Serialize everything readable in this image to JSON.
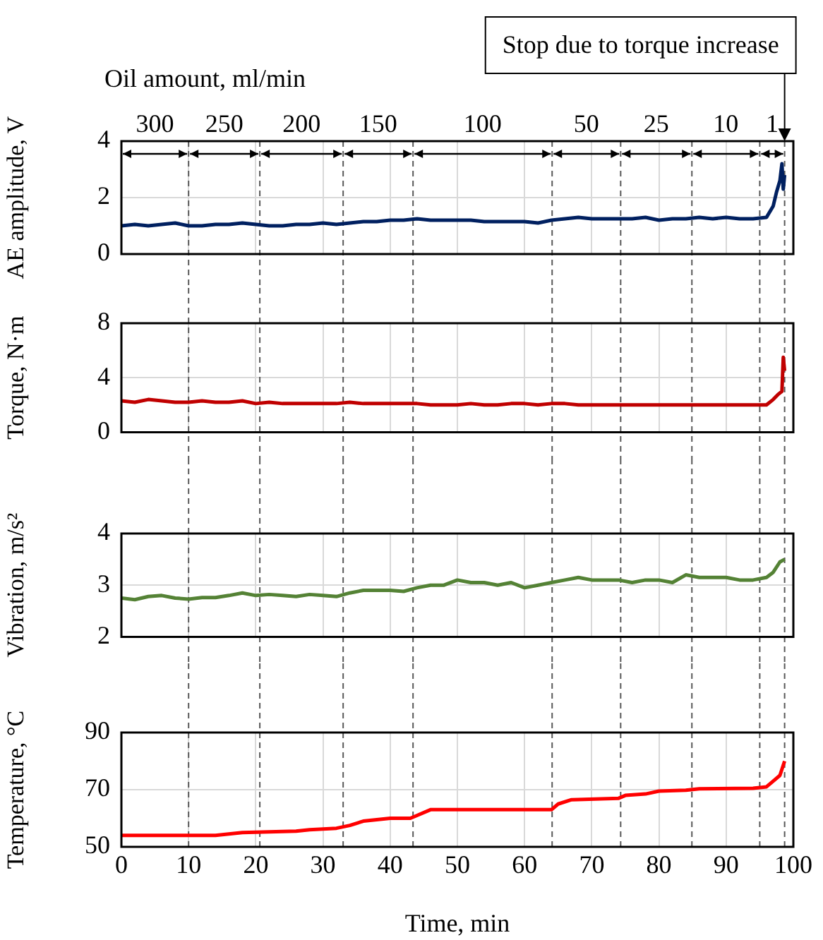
{
  "chart_data": [
    {
      "type": "line",
      "title": "Oil amount, ml/min",
      "ylabel": "AE amplitude, V",
      "xlim": [
        0,
        100
      ],
      "xticks": [
        0,
        10,
        20,
        30,
        40,
        50,
        60,
        70,
        80,
        90,
        100
      ],
      "ylim": [
        0,
        4
      ],
      "yticks": [
        0,
        2,
        4
      ],
      "grid": true,
      "tick_labels": "y",
      "marker": "none",
      "series": [
        {
          "color": "#002060",
          "x": [
            0,
            2,
            4,
            6,
            8,
            10,
            12,
            14,
            16,
            18,
            20,
            22,
            24,
            26,
            28,
            30,
            32,
            34,
            36,
            38,
            40,
            42,
            44,
            46,
            48,
            50,
            52,
            54,
            56,
            58,
            60,
            62,
            64,
            66,
            68,
            70,
            72,
            74,
            76,
            78,
            80,
            82,
            84,
            86,
            88,
            90,
            92,
            94,
            96,
            97,
            97.5,
            98,
            98.3,
            98.5,
            98.7
          ],
          "values": [
            1.0,
            1.05,
            1.0,
            1.05,
            1.1,
            1.0,
            1.0,
            1.05,
            1.05,
            1.1,
            1.05,
            1.0,
            1.0,
            1.05,
            1.05,
            1.1,
            1.05,
            1.1,
            1.15,
            1.15,
            1.2,
            1.2,
            1.25,
            1.2,
            1.2,
            1.2,
            1.2,
            1.15,
            1.15,
            1.15,
            1.15,
            1.1,
            1.2,
            1.25,
            1.3,
            1.25,
            1.25,
            1.25,
            1.25,
            1.3,
            1.2,
            1.25,
            1.25,
            1.3,
            1.25,
            1.3,
            1.25,
            1.25,
            1.3,
            1.7,
            2.2,
            2.6,
            3.2,
            2.3,
            2.8
          ]
        }
      ],
      "ref_lines": [
        {
          "axis": "x",
          "value": 10,
          "label": null,
          "line_style": "dashed"
        },
        {
          "axis": "x",
          "value": 20.6,
          "label": null,
          "line_style": "dashed"
        },
        {
          "axis": "x",
          "value": 33,
          "label": null,
          "line_style": "dashed"
        },
        {
          "axis": "x",
          "value": 43.4,
          "label": null,
          "line_style": "dashed"
        },
        {
          "axis": "x",
          "value": 64.1,
          "label": null,
          "line_style": "dashed"
        },
        {
          "axis": "x",
          "value": 74.3,
          "label": null,
          "line_style": "dashed"
        },
        {
          "axis": "x",
          "value": 84.9,
          "label": null,
          "line_style": "dashed"
        },
        {
          "axis": "x",
          "value": 95,
          "label": null,
          "line_style": "dashed"
        },
        {
          "axis": "x",
          "value": 98.7,
          "label": "Stop due to torque increase",
          "line_style": "dashed"
        }
      ],
      "annotations": [
        "300",
        "250",
        "200",
        "150",
        "100",
        "50",
        "25",
        "10",
        "1"
      ]
    },
    {
      "type": "line",
      "ylabel": "Torque, N·m",
      "xlim": [
        0,
        100
      ],
      "xticks": [
        0,
        10,
        20,
        30,
        40,
        50,
        60,
        70,
        80,
        90,
        100
      ],
      "ylim": [
        0,
        8
      ],
      "yticks": [
        0,
        4,
        8
      ],
      "grid": true,
      "tick_labels": "y",
      "marker": "none",
      "series": [
        {
          "color": "#c00000",
          "x": [
            0,
            2,
            4,
            6,
            8,
            10,
            12,
            14,
            16,
            18,
            20,
            22,
            24,
            26,
            28,
            30,
            32,
            34,
            36,
            38,
            40,
            42,
            44,
            46,
            48,
            50,
            52,
            54,
            56,
            58,
            60,
            62,
            64,
            66,
            68,
            70,
            72,
            74,
            76,
            78,
            80,
            82,
            84,
            86,
            88,
            90,
            92,
            94,
            96,
            97,
            97.8,
            98.3,
            98.5,
            98.7
          ],
          "values": [
            2.3,
            2.2,
            2.4,
            2.3,
            2.2,
            2.2,
            2.3,
            2.2,
            2.2,
            2.3,
            2.1,
            2.2,
            2.1,
            2.1,
            2.1,
            2.1,
            2.1,
            2.2,
            2.1,
            2.1,
            2.1,
            2.1,
            2.1,
            2.0,
            2.0,
            2.0,
            2.1,
            2.0,
            2.0,
            2.1,
            2.1,
            2.0,
            2.1,
            2.1,
            2.0,
            2.0,
            2.0,
            2.0,
            2.0,
            2.0,
            2.0,
            2.0,
            2.0,
            2.0,
            2.0,
            2.0,
            2.0,
            2.0,
            2.0,
            2.4,
            2.8,
            3.0,
            5.5,
            4.5
          ]
        }
      ],
      "ref_lines": [
        {
          "axis": "x",
          "value": 10,
          "label": null,
          "line_style": "dashed"
        },
        {
          "axis": "x",
          "value": 20.6,
          "label": null,
          "line_style": "dashed"
        },
        {
          "axis": "x",
          "value": 33,
          "label": null,
          "line_style": "dashed"
        },
        {
          "axis": "x",
          "value": 43.4,
          "label": null,
          "line_style": "dashed"
        },
        {
          "axis": "x",
          "value": 64.1,
          "label": null,
          "line_style": "dashed"
        },
        {
          "axis": "x",
          "value": 74.3,
          "label": null,
          "line_style": "dashed"
        },
        {
          "axis": "x",
          "value": 84.9,
          "label": null,
          "line_style": "dashed"
        },
        {
          "axis": "x",
          "value": 95,
          "label": null,
          "line_style": "dashed"
        },
        {
          "axis": "x",
          "value": 98.7,
          "label": null,
          "line_style": "dashed"
        }
      ]
    },
    {
      "type": "line",
      "ylabel": "Vibration, m/s²",
      "xlim": [
        0,
        100
      ],
      "xticks": [
        0,
        10,
        20,
        30,
        40,
        50,
        60,
        70,
        80,
        90,
        100
      ],
      "ylim": [
        2,
        4
      ],
      "yticks": [
        2,
        3,
        4
      ],
      "grid": true,
      "tick_labels": "y",
      "marker": "none",
      "series": [
        {
          "color": "#548235",
          "x": [
            0,
            2,
            4,
            6,
            8,
            10,
            12,
            14,
            16,
            18,
            20,
            22,
            24,
            26,
            28,
            30,
            32,
            34,
            36,
            38,
            40,
            42,
            44,
            46,
            48,
            50,
            52,
            54,
            56,
            58,
            60,
            62,
            64,
            66,
            68,
            70,
            72,
            74,
            76,
            78,
            80,
            82,
            84,
            86,
            88,
            90,
            92,
            94,
            96,
            97,
            98,
            98.7
          ],
          "values": [
            2.75,
            2.72,
            2.78,
            2.8,
            2.75,
            2.73,
            2.76,
            2.76,
            2.8,
            2.85,
            2.8,
            2.82,
            2.8,
            2.78,
            2.82,
            2.8,
            2.78,
            2.85,
            2.9,
            2.9,
            2.9,
            2.88,
            2.95,
            3.0,
            3.0,
            3.1,
            3.05,
            3.05,
            3.0,
            3.05,
            2.95,
            3.0,
            3.05,
            3.1,
            3.15,
            3.1,
            3.1,
            3.1,
            3.05,
            3.1,
            3.1,
            3.05,
            3.2,
            3.15,
            3.15,
            3.15,
            3.1,
            3.1,
            3.15,
            3.25,
            3.45,
            3.5
          ]
        }
      ],
      "ref_lines": [
        {
          "axis": "x",
          "value": 10,
          "label": null,
          "line_style": "dashed"
        },
        {
          "axis": "x",
          "value": 20.6,
          "label": null,
          "line_style": "dashed"
        },
        {
          "axis": "x",
          "value": 33,
          "label": null,
          "line_style": "dashed"
        },
        {
          "axis": "x",
          "value": 43.4,
          "label": null,
          "line_style": "dashed"
        },
        {
          "axis": "x",
          "value": 64.1,
          "label": null,
          "line_style": "dashed"
        },
        {
          "axis": "x",
          "value": 74.3,
          "label": null,
          "line_style": "dashed"
        },
        {
          "axis": "x",
          "value": 84.9,
          "label": null,
          "line_style": "dashed"
        },
        {
          "axis": "x",
          "value": 95,
          "label": null,
          "line_style": "dashed"
        },
        {
          "axis": "x",
          "value": 98.7,
          "label": null,
          "line_style": "dashed"
        }
      ]
    },
    {
      "type": "line",
      "xlabel": "Time, min",
      "ylabel": "Temperature, °C",
      "xlim": [
        0,
        100
      ],
      "xticks": [
        0,
        10,
        20,
        30,
        40,
        50,
        60,
        70,
        80,
        90,
        100
      ],
      "ylim": [
        50,
        90
      ],
      "yticks": [
        50,
        70,
        90
      ],
      "grid": true,
      "marker": "none",
      "series": [
        {
          "color": "#ff0000",
          "x": [
            0,
            14,
            16,
            18,
            26,
            28,
            32,
            34,
            36,
            40,
            43,
            44,
            46,
            64,
            65,
            67,
            74,
            75,
            78,
            80,
            84,
            86,
            94,
            96,
            97,
            98,
            98.7
          ],
          "values": [
            54,
            54,
            54.5,
            55,
            55.5,
            56,
            56.5,
            57.5,
            59,
            60,
            60,
            61,
            63,
            63,
            65,
            66.5,
            67,
            68,
            68.5,
            69.5,
            69.8,
            70.3,
            70.5,
            71,
            73,
            75,
            80
          ]
        }
      ],
      "ref_lines": [
        {
          "axis": "x",
          "value": 10,
          "label": null,
          "line_style": "dashed"
        },
        {
          "axis": "x",
          "value": 20.6,
          "label": null,
          "line_style": "dashed"
        },
        {
          "axis": "x",
          "value": 33,
          "label": null,
          "line_style": "dashed"
        },
        {
          "axis": "x",
          "value": 43.4,
          "label": null,
          "line_style": "dashed"
        },
        {
          "axis": "x",
          "value": 64.1,
          "label": null,
          "line_style": "dashed"
        },
        {
          "axis": "x",
          "value": 74.3,
          "label": null,
          "line_style": "dashed"
        },
        {
          "axis": "x",
          "value": 84.9,
          "label": null,
          "line_style": "dashed"
        },
        {
          "axis": "x",
          "value": 95,
          "label": null,
          "line_style": "dashed"
        },
        {
          "axis": "x",
          "value": 98.7,
          "label": null,
          "line_style": "dashed"
        }
      ]
    }
  ]
}
